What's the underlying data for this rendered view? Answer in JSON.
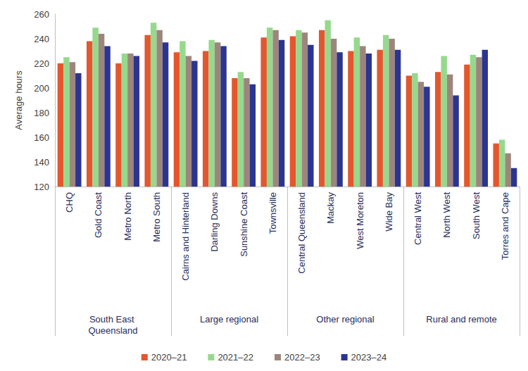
{
  "chart_data": {
    "type": "bar",
    "y_label": "Average hours",
    "groups": [
      {
        "label": "South East Queensland",
        "categories": [
          "CHQ",
          "Gold Coast",
          "Metro North",
          "Metro South"
        ]
      },
      {
        "label": "Large regional",
        "categories": [
          "Cairns and Hinterland",
          "Darling Downs",
          "Sunshine Coast",
          "Townsville"
        ]
      },
      {
        "label": "Other regional",
        "categories": [
          "Central Queensland",
          "Mackay",
          "West Moreton",
          "Wide Bay"
        ]
      },
      {
        "label": "Rural and remote",
        "categories": [
          "Central West",
          "North West",
          "South West",
          "Torres and Cape"
        ]
      }
    ],
    "series": [
      {
        "name": "2020–21",
        "color": "#e4572e",
        "values": [
          220,
          238,
          220,
          243,
          229,
          230,
          208,
          241,
          242,
          247,
          230,
          231,
          210,
          213,
          219,
          155
        ]
      },
      {
        "name": "2021–22",
        "color": "#96d98d",
        "values": [
          225,
          249,
          228,
          253,
          238,
          239,
          213,
          249,
          247,
          255,
          241,
          243,
          212,
          226,
          227,
          158
        ]
      },
      {
        "name": "2022–23",
        "color": "#9c867c",
        "values": [
          221,
          244,
          228,
          247,
          226,
          237,
          208,
          247,
          245,
          240,
          234,
          240,
          205,
          211,
          225,
          147
        ]
      },
      {
        "name": "2023–24",
        "color": "#2b3590",
        "values": [
          212,
          234,
          226,
          237,
          222,
          234,
          203,
          239,
          235,
          229,
          228,
          231,
          201,
          194,
          231,
          135
        ]
      }
    ],
    "ylim": [
      120,
      260
    ],
    "yticks": [
      120,
      140,
      160,
      180,
      200,
      220,
      240,
      260
    ],
    "grid": false,
    "legend": "bottom"
  }
}
